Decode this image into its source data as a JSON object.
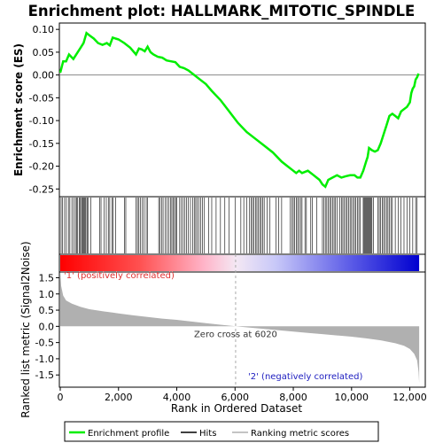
{
  "chart_data": {
    "type": "line",
    "title": "Enrichment plot: HALLMARK_MITOTIC_SPINDLE",
    "es_panel": {
      "ylabel": "Enrichment score (ES)",
      "ylim": [
        -0.265,
        0.112
      ],
      "yticks": [
        -0.25,
        -0.2,
        -0.15,
        -0.1,
        -0.05,
        0.0,
        0.05,
        0.1
      ],
      "ytick_labels": [
        "-0.25",
        "-0.20",
        "-0.15",
        "-0.10",
        "-0.05",
        "0.00",
        "0.05",
        "0.10"
      ],
      "series": [
        {
          "name": "Enrichment profile",
          "color": "#00ee00",
          "x": [
            0,
            100,
            200,
            300,
            450,
            600,
            700,
            800,
            900,
            1000,
            1150,
            1300,
            1450,
            1600,
            1700,
            1800,
            1900,
            2000,
            2200,
            2400,
            2600,
            2700,
            2800,
            2900,
            3000,
            3100,
            3200,
            3350,
            3500,
            3650,
            3800,
            3950,
            4100,
            4250,
            4400,
            4600,
            4800,
            5000,
            5200,
            5500,
            5800,
            6100,
            6400,
            6700,
            7000,
            7300,
            7600,
            7800,
            8000,
            8100,
            8200,
            8300,
            8500,
            8700,
            8800,
            8900,
            9000,
            9100,
            9200,
            9350,
            9500,
            9650,
            9800,
            9950,
            10100,
            10200,
            10300,
            10400,
            10500,
            10550,
            10600,
            10700,
            10800,
            10900,
            11000,
            11100,
            11200,
            11300,
            11400,
            11500,
            11600,
            11700,
            11800,
            11900,
            12000,
            12050,
            12100,
            12150,
            12200,
            12250,
            12300
          ],
          "y": [
            0.005,
            0.03,
            0.03,
            0.045,
            0.035,
            0.05,
            0.06,
            0.07,
            0.092,
            0.087,
            0.08,
            0.07,
            0.066,
            0.07,
            0.065,
            0.082,
            0.08,
            0.078,
            0.07,
            0.06,
            0.045,
            0.058,
            0.056,
            0.052,
            0.062,
            0.05,
            0.045,
            0.04,
            0.038,
            0.032,
            0.03,
            0.028,
            0.018,
            0.015,
            0.01,
            0.0,
            -0.01,
            -0.02,
            -0.035,
            -0.055,
            -0.08,
            -0.105,
            -0.125,
            -0.14,
            -0.155,
            -0.17,
            -0.19,
            -0.2,
            -0.21,
            -0.215,
            -0.21,
            -0.215,
            -0.21,
            -0.22,
            -0.225,
            -0.23,
            -0.24,
            -0.245,
            -0.23,
            -0.225,
            -0.22,
            -0.225,
            -0.222,
            -0.22,
            -0.22,
            -0.225,
            -0.225,
            -0.21,
            -0.19,
            -0.18,
            -0.16,
            -0.165,
            -0.168,
            -0.165,
            -0.15,
            -0.13,
            -0.11,
            -0.09,
            -0.085,
            -0.09,
            -0.095,
            -0.08,
            -0.075,
            -0.07,
            -0.06,
            -0.04,
            -0.03,
            -0.025,
            -0.01,
            -0.005,
            0.003
          ]
        }
      ]
    },
    "hits_panel": {
      "hit_positions": [
        30,
        80,
        150,
        210,
        280,
        330,
        400,
        460,
        520,
        560,
        600,
        650,
        690,
        730,
        760,
        790,
        820,
        850,
        880,
        920,
        950,
        1050,
        1350,
        1400,
        1500,
        1580,
        1650,
        1700,
        1780,
        1820,
        1900,
        2200,
        2250,
        2600,
        2650,
        2700,
        2750,
        2820,
        2880,
        2950,
        3000,
        3380,
        3420,
        3480,
        3530,
        3600,
        3660,
        3720,
        3780,
        3830,
        3870,
        3920,
        3960,
        4000,
        4100,
        4160,
        4220,
        4280,
        4340,
        4400,
        4470,
        4550,
        4600,
        4650,
        4700,
        4760,
        4820,
        4880,
        4950,
        5100,
        5200,
        5350,
        5500,
        5650,
        5800,
        6000,
        6200,
        6300,
        6400,
        6500,
        6550,
        6600,
        6650,
        6700,
        6750,
        6800,
        6850,
        6900,
        6950,
        7000,
        7100,
        7200,
        7400,
        7500,
        7600,
        7900,
        7950,
        8000,
        8050,
        8100,
        8150,
        8200,
        8250,
        8300,
        8400,
        8450,
        8600,
        8650,
        8800,
        9000,
        9050,
        9100,
        9150,
        9200,
        9250,
        9300,
        9350,
        9400,
        9450,
        9500,
        9600,
        9650,
        9700,
        9750,
        9800,
        9850,
        9900,
        9950,
        10000,
        10050,
        10100,
        10150,
        10200,
        10250,
        10300,
        10400,
        10430,
        10460,
        10490,
        10520,
        10550,
        10580,
        10610,
        10640,
        10670,
        10700,
        10750,
        10900,
        10950,
        11000,
        11050,
        11100,
        11150,
        11200,
        11250,
        11300,
        11350,
        11400,
        11500,
        11600,
        11700,
        11800,
        11900,
        12000,
        12100,
        12200,
        12250
      ],
      "legend_hits": "Hits"
    },
    "metric_panel": {
      "ylabel": "Ranked list metric (Signal2Noise)",
      "ylim": [
        -1.85,
        1.65
      ],
      "yticks": [
        -1.5,
        -1.0,
        -0.5,
        0.0,
        0.5,
        1.0,
        1.5
      ],
      "ytick_labels": [
        "-1.5",
        "-1.0",
        "-0.5",
        "0.0",
        "0.5",
        "1.0",
        "1.5"
      ],
      "series": [
        {
          "name": "Ranking metric scores",
          "color": "#b0b0b0",
          "x": [
            0,
            30,
            100,
            200,
            400,
            700,
            1000,
            1500,
            2000,
            2500,
            3000,
            3500,
            4000,
            4500,
            5000,
            5500,
            6020,
            6500,
            7000,
            7500,
            8000,
            8500,
            9000,
            9500,
            10000,
            10500,
            11000,
            11500,
            11800,
            12000,
            12150,
            12250,
            12300,
            12320
          ],
          "y": [
            1.7,
            1.25,
            0.95,
            0.8,
            0.7,
            0.6,
            0.53,
            0.46,
            0.4,
            0.34,
            0.29,
            0.24,
            0.2,
            0.15,
            0.1,
            0.05,
            0.0,
            -0.04,
            -0.08,
            -0.12,
            -0.16,
            -0.2,
            -0.24,
            -0.28,
            -0.32,
            -0.37,
            -0.43,
            -0.52,
            -0.6,
            -0.7,
            -0.85,
            -1.05,
            -1.4,
            -1.75
          ]
        }
      ],
      "zero_cross_label": "Zero cross at 6020",
      "zero_cross_x": 6020,
      "positive_label": "'1' (positively correlated)",
      "negative_label": "'2' (negatively correlated)"
    },
    "x_axis": {
      "xlabel": "Rank in Ordered Dataset",
      "xlim": [
        0,
        12500
      ],
      "xticks": [
        0,
        2000,
        4000,
        6000,
        8000,
        10000,
        12000
      ],
      "xtick_labels": [
        "0",
        "2,000",
        "4,000",
        "6,000",
        "8,000",
        "10,000",
        "12,000"
      ],
      "n_genes": 12320
    },
    "legend": {
      "placement": "bottom",
      "items": [
        {
          "label": "Enrichment profile",
          "color": "#00ee00"
        },
        {
          "label": "Hits",
          "color": "#000000"
        },
        {
          "label": "Ranking metric scores",
          "color": "#b0b0b0"
        }
      ]
    },
    "colors": {
      "positive": "#ff0000",
      "negative": "#0000ff",
      "positive_label": "#e03030",
      "negative_label": "#2020c0"
    }
  }
}
